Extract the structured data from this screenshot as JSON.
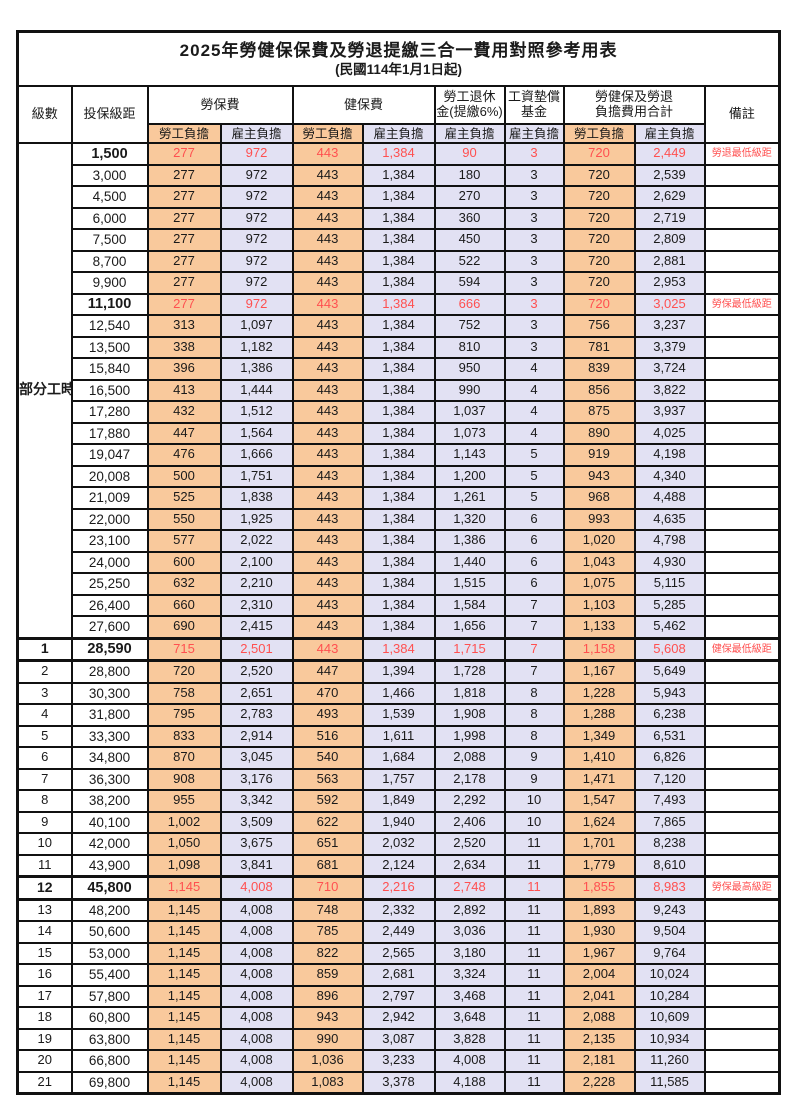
{
  "title": "2025年勞健保保費及勞退提繳三合一費用對照參考用表",
  "subtitle": "(民國114年1月1日起)",
  "header": {
    "grade": "級數",
    "bracket": "投保級距",
    "labor_insurance": "勞保費",
    "health_insurance": "健保費",
    "pension_line1": "勞工退休",
    "pension_line2": "金(提繳6%)",
    "wage_fund_line1": "工資墊償",
    "wage_fund_line2": "基金",
    "total_line1": "勞健保及勞退",
    "total_line2": "負擔費用合計",
    "note": "備註",
    "employee": "勞工負擔",
    "employer": "雇主負擔"
  },
  "group_label": "部分工時",
  "colors": {
    "employee_bg": "#F9C99C",
    "employer_bg": "#E2E1F3",
    "highlight_text": "#FF5050",
    "border": "#111111"
  },
  "value_column_types": [
    "emp",
    "er",
    "emp",
    "er",
    "er",
    "er",
    "emp",
    "er"
  ],
  "rows": [
    {
      "grade": "",
      "bracket": "1,500",
      "values": [
        "277",
        "972",
        "443",
        "1,384",
        "90",
        "3",
        "720",
        "2,449"
      ],
      "note": "勞退最低級距",
      "highlight": true,
      "thick": false
    },
    {
      "grade": "",
      "bracket": "3,000",
      "values": [
        "277",
        "972",
        "443",
        "1,384",
        "180",
        "3",
        "720",
        "2,539"
      ],
      "note": "",
      "highlight": false,
      "thick": false
    },
    {
      "grade": "",
      "bracket": "4,500",
      "values": [
        "277",
        "972",
        "443",
        "1,384",
        "270",
        "3",
        "720",
        "2,629"
      ],
      "note": "",
      "highlight": false,
      "thick": false
    },
    {
      "grade": "",
      "bracket": "6,000",
      "values": [
        "277",
        "972",
        "443",
        "1,384",
        "360",
        "3",
        "720",
        "2,719"
      ],
      "note": "",
      "highlight": false,
      "thick": false
    },
    {
      "grade": "",
      "bracket": "7,500",
      "values": [
        "277",
        "972",
        "443",
        "1,384",
        "450",
        "3",
        "720",
        "2,809"
      ],
      "note": "",
      "highlight": false,
      "thick": false
    },
    {
      "grade": "",
      "bracket": "8,700",
      "values": [
        "277",
        "972",
        "443",
        "1,384",
        "522",
        "3",
        "720",
        "2,881"
      ],
      "note": "",
      "highlight": false,
      "thick": false
    },
    {
      "grade": "",
      "bracket": "9,900",
      "values": [
        "277",
        "972",
        "443",
        "1,384",
        "594",
        "3",
        "720",
        "2,953"
      ],
      "note": "",
      "highlight": false,
      "thick": false
    },
    {
      "grade": "",
      "bracket": "11,100",
      "values": [
        "277",
        "972",
        "443",
        "1,384",
        "666",
        "3",
        "720",
        "3,025"
      ],
      "note": "勞保最低級距",
      "highlight": true,
      "thick": false
    },
    {
      "grade": "",
      "bracket": "12,540",
      "values": [
        "313",
        "1,097",
        "443",
        "1,384",
        "752",
        "3",
        "756",
        "3,237"
      ],
      "note": "",
      "highlight": false,
      "thick": false
    },
    {
      "grade": "",
      "bracket": "13,500",
      "values": [
        "338",
        "1,182",
        "443",
        "1,384",
        "810",
        "3",
        "781",
        "3,379"
      ],
      "note": "",
      "highlight": false,
      "thick": false
    },
    {
      "grade": "",
      "bracket": "15,840",
      "values": [
        "396",
        "1,386",
        "443",
        "1,384",
        "950",
        "4",
        "839",
        "3,724"
      ],
      "note": "",
      "highlight": false,
      "thick": false
    },
    {
      "grade": "",
      "bracket": "16,500",
      "values": [
        "413",
        "1,444",
        "443",
        "1,384",
        "990",
        "4",
        "856",
        "3,822"
      ],
      "note": "",
      "highlight": false,
      "thick": false
    },
    {
      "grade": "",
      "bracket": "17,280",
      "values": [
        "432",
        "1,512",
        "443",
        "1,384",
        "1,037",
        "4",
        "875",
        "3,937"
      ],
      "note": "",
      "highlight": false,
      "thick": false
    },
    {
      "grade": "",
      "bracket": "17,880",
      "values": [
        "447",
        "1,564",
        "443",
        "1,384",
        "1,073",
        "4",
        "890",
        "4,025"
      ],
      "note": "",
      "highlight": false,
      "thick": false
    },
    {
      "grade": "",
      "bracket": "19,047",
      "values": [
        "476",
        "1,666",
        "443",
        "1,384",
        "1,143",
        "5",
        "919",
        "4,198"
      ],
      "note": "",
      "highlight": false,
      "thick": false
    },
    {
      "grade": "",
      "bracket": "20,008",
      "values": [
        "500",
        "1,751",
        "443",
        "1,384",
        "1,200",
        "5",
        "943",
        "4,340"
      ],
      "note": "",
      "highlight": false,
      "thick": false
    },
    {
      "grade": "",
      "bracket": "21,009",
      "values": [
        "525",
        "1,838",
        "443",
        "1,384",
        "1,261",
        "5",
        "968",
        "4,488"
      ],
      "note": "",
      "highlight": false,
      "thick": false
    },
    {
      "grade": "",
      "bracket": "22,000",
      "values": [
        "550",
        "1,925",
        "443",
        "1,384",
        "1,320",
        "6",
        "993",
        "4,635"
      ],
      "note": "",
      "highlight": false,
      "thick": false
    },
    {
      "grade": "",
      "bracket": "23,100",
      "values": [
        "577",
        "2,022",
        "443",
        "1,384",
        "1,386",
        "6",
        "1,020",
        "4,798"
      ],
      "note": "",
      "highlight": false,
      "thick": false
    },
    {
      "grade": "",
      "bracket": "24,000",
      "values": [
        "600",
        "2,100",
        "443",
        "1,384",
        "1,440",
        "6",
        "1,043",
        "4,930"
      ],
      "note": "",
      "highlight": false,
      "thick": false
    },
    {
      "grade": "",
      "bracket": "25,250",
      "values": [
        "632",
        "2,210",
        "443",
        "1,384",
        "1,515",
        "6",
        "1,075",
        "5,115"
      ],
      "note": "",
      "highlight": false,
      "thick": false
    },
    {
      "grade": "",
      "bracket": "26,400",
      "values": [
        "660",
        "2,310",
        "443",
        "1,384",
        "1,584",
        "7",
        "1,103",
        "5,285"
      ],
      "note": "",
      "highlight": false,
      "thick": false
    },
    {
      "grade": "",
      "bracket": "27,600",
      "values": [
        "690",
        "2,415",
        "443",
        "1,384",
        "1,656",
        "7",
        "1,133",
        "5,462"
      ],
      "note": "",
      "highlight": false,
      "thick": false
    },
    {
      "grade": "1",
      "bracket": "28,590",
      "values": [
        "715",
        "2,501",
        "443",
        "1,384",
        "1,715",
        "7",
        "1,158",
        "5,608"
      ],
      "note": "健保最低級距",
      "highlight": true,
      "thick": true
    },
    {
      "grade": "2",
      "bracket": "28,800",
      "values": [
        "720",
        "2,520",
        "447",
        "1,394",
        "1,728",
        "7",
        "1,167",
        "5,649"
      ],
      "note": "",
      "highlight": false,
      "thick": false
    },
    {
      "grade": "3",
      "bracket": "30,300",
      "values": [
        "758",
        "2,651",
        "470",
        "1,466",
        "1,818",
        "8",
        "1,228",
        "5,943"
      ],
      "note": "",
      "highlight": false,
      "thick": false
    },
    {
      "grade": "4",
      "bracket": "31,800",
      "values": [
        "795",
        "2,783",
        "493",
        "1,539",
        "1,908",
        "8",
        "1,288",
        "6,238"
      ],
      "note": "",
      "highlight": false,
      "thick": false
    },
    {
      "grade": "5",
      "bracket": "33,300",
      "values": [
        "833",
        "2,914",
        "516",
        "1,611",
        "1,998",
        "8",
        "1,349",
        "6,531"
      ],
      "note": "",
      "highlight": false,
      "thick": false
    },
    {
      "grade": "6",
      "bracket": "34,800",
      "values": [
        "870",
        "3,045",
        "540",
        "1,684",
        "2,088",
        "9",
        "1,410",
        "6,826"
      ],
      "note": "",
      "highlight": false,
      "thick": false
    },
    {
      "grade": "7",
      "bracket": "36,300",
      "values": [
        "908",
        "3,176",
        "563",
        "1,757",
        "2,178",
        "9",
        "1,471",
        "7,120"
      ],
      "note": "",
      "highlight": false,
      "thick": false
    },
    {
      "grade": "8",
      "bracket": "38,200",
      "values": [
        "955",
        "3,342",
        "592",
        "1,849",
        "2,292",
        "10",
        "1,547",
        "7,493"
      ],
      "note": "",
      "highlight": false,
      "thick": false
    },
    {
      "grade": "9",
      "bracket": "40,100",
      "values": [
        "1,002",
        "3,509",
        "622",
        "1,940",
        "2,406",
        "10",
        "1,624",
        "7,865"
      ],
      "note": "",
      "highlight": false,
      "thick": false
    },
    {
      "grade": "10",
      "bracket": "42,000",
      "values": [
        "1,050",
        "3,675",
        "651",
        "2,032",
        "2,520",
        "11",
        "1,701",
        "8,238"
      ],
      "note": "",
      "highlight": false,
      "thick": false
    },
    {
      "grade": "11",
      "bracket": "43,900",
      "values": [
        "1,098",
        "3,841",
        "681",
        "2,124",
        "2,634",
        "11",
        "1,779",
        "8,610"
      ],
      "note": "",
      "highlight": false,
      "thick": false
    },
    {
      "grade": "12",
      "bracket": "45,800",
      "values": [
        "1,145",
        "4,008",
        "710",
        "2,216",
        "2,748",
        "11",
        "1,855",
        "8,983"
      ],
      "note": "勞保最高級距",
      "highlight": true,
      "thick": true
    },
    {
      "grade": "13",
      "bracket": "48,200",
      "values": [
        "1,145",
        "4,008",
        "748",
        "2,332",
        "2,892",
        "11",
        "1,893",
        "9,243"
      ],
      "note": "",
      "highlight": false,
      "thick": false
    },
    {
      "grade": "14",
      "bracket": "50,600",
      "values": [
        "1,145",
        "4,008",
        "785",
        "2,449",
        "3,036",
        "11",
        "1,930",
        "9,504"
      ],
      "note": "",
      "highlight": false,
      "thick": false
    },
    {
      "grade": "15",
      "bracket": "53,000",
      "values": [
        "1,145",
        "4,008",
        "822",
        "2,565",
        "3,180",
        "11",
        "1,967",
        "9,764"
      ],
      "note": "",
      "highlight": false,
      "thick": false
    },
    {
      "grade": "16",
      "bracket": "55,400",
      "values": [
        "1,145",
        "4,008",
        "859",
        "2,681",
        "3,324",
        "11",
        "2,004",
        "10,024"
      ],
      "note": "",
      "highlight": false,
      "thick": false
    },
    {
      "grade": "17",
      "bracket": "57,800",
      "values": [
        "1,145",
        "4,008",
        "896",
        "2,797",
        "3,468",
        "11",
        "2,041",
        "10,284"
      ],
      "note": "",
      "highlight": false,
      "thick": false
    },
    {
      "grade": "18",
      "bracket": "60,800",
      "values": [
        "1,145",
        "4,008",
        "943",
        "2,942",
        "3,648",
        "11",
        "2,088",
        "10,609"
      ],
      "note": "",
      "highlight": false,
      "thick": false
    },
    {
      "grade": "19",
      "bracket": "63,800",
      "values": [
        "1,145",
        "4,008",
        "990",
        "3,087",
        "3,828",
        "11",
        "2,135",
        "10,934"
      ],
      "note": "",
      "highlight": false,
      "thick": false
    },
    {
      "grade": "20",
      "bracket": "66,800",
      "values": [
        "1,145",
        "4,008",
        "1,036",
        "3,233",
        "4,008",
        "11",
        "2,181",
        "11,260"
      ],
      "note": "",
      "highlight": false,
      "thick": false
    },
    {
      "grade": "21",
      "bracket": "69,800",
      "values": [
        "1,145",
        "4,008",
        "1,083",
        "3,378",
        "4,188",
        "11",
        "2,228",
        "11,585"
      ],
      "note": "",
      "highlight": false,
      "thick": false
    }
  ]
}
